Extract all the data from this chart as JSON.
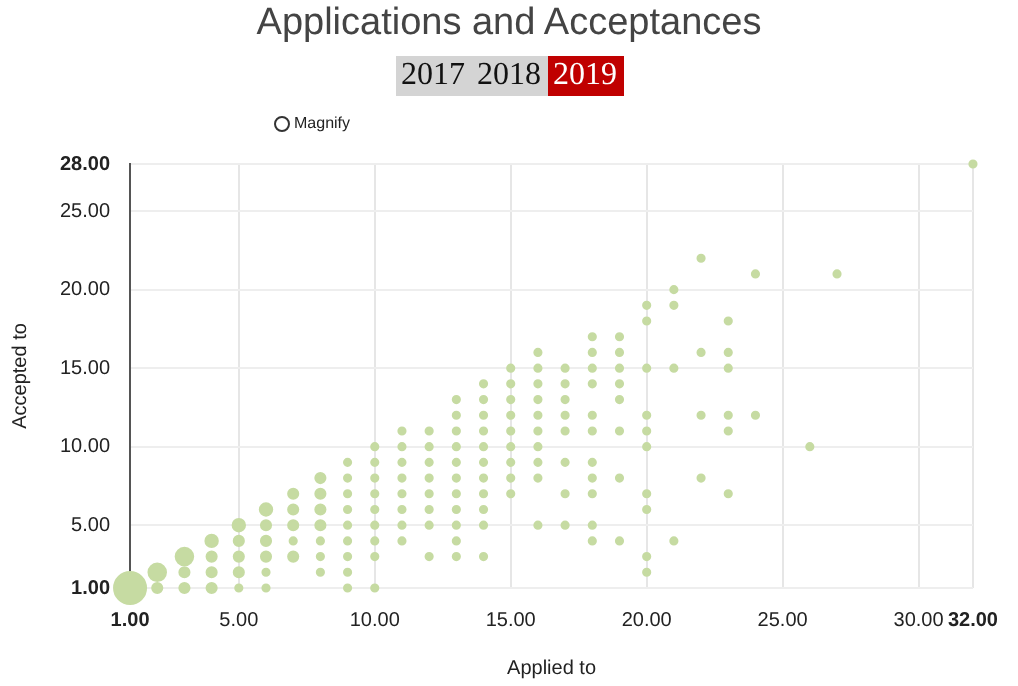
{
  "chart_data": {
    "type": "bubble",
    "title": "Applications and Acceptances",
    "xlabel": "Applied to",
    "ylabel": "Accepted to",
    "annotations": [
      "2017",
      "2018",
      "2019",
      "Magnify"
    ],
    "xlim": [
      1,
      32
    ],
    "xticks": [
      {
        "value": 1,
        "label": "1.00"
      },
      {
        "value": 5,
        "label": "5.00"
      },
      {
        "value": 10,
        "label": "10.00"
      },
      {
        "value": 15,
        "label": "15.00"
      },
      {
        "value": 20,
        "label": "20.00"
      },
      {
        "value": 25,
        "label": "25.00"
      },
      {
        "value": 30,
        "label": "30.00"
      },
      {
        "value": 32,
        "label": "32.00"
      }
    ],
    "ylim": [
      1,
      28
    ],
    "yticks": [
      {
        "value": 1,
        "label": "1.00"
      },
      {
        "value": 5,
        "label": "5.00"
      },
      {
        "value": 10,
        "label": "10.00"
      },
      {
        "value": 15,
        "label": "15.00"
      },
      {
        "value": 20,
        "label": "20.00"
      },
      {
        "value": 25,
        "label": "25.00"
      },
      {
        "value": 28,
        "label": "28.00"
      }
    ],
    "grid": true,
    "legend": false,
    "series": [
      {
        "color": "#c6dba2",
        "x": [
          1,
          2,
          2,
          3,
          3,
          3,
          4,
          4,
          4,
          4,
          5,
          5,
          5,
          5,
          5,
          6,
          6,
          6,
          6,
          6,
          6,
          7,
          7,
          7,
          7,
          7,
          8,
          8,
          8,
          8,
          8,
          8,
          8,
          9,
          9,
          9,
          9,
          9,
          9,
          9,
          9,
          9,
          10,
          10,
          10,
          10,
          10,
          10,
          10,
          10,
          10,
          11,
          11,
          11,
          11,
          11,
          11,
          11,
          11,
          12,
          12,
          12,
          12,
          12,
          12,
          12,
          12,
          13,
          13,
          13,
          13,
          13,
          13,
          13,
          13,
          13,
          13,
          13,
          14,
          14,
          14,
          14,
          14,
          14,
          14,
          14,
          14,
          14,
          14,
          15,
          15,
          15,
          15,
          15,
          15,
          15,
          15,
          15,
          16,
          16,
          16,
          16,
          16,
          16,
          16,
          16,
          16,
          16,
          17,
          17,
          17,
          17,
          17,
          17,
          17,
          17,
          18,
          18,
          18,
          18,
          18,
          18,
          18,
          18,
          18,
          18,
          18,
          19,
          19,
          19,
          19,
          19,
          19,
          19,
          19,
          20,
          20,
          20,
          20,
          20,
          20,
          20,
          20,
          20,
          20,
          21,
          21,
          21,
          21,
          22,
          22,
          22,
          22,
          23,
          23,
          23,
          23,
          23,
          23,
          24,
          24,
          26,
          27,
          32
        ],
        "values": [
          1,
          1,
          2,
          1,
          2,
          3,
          1,
          2,
          3,
          4,
          1,
          2,
          3,
          4,
          5,
          1,
          2,
          3,
          4,
          5,
          6,
          3,
          4,
          5,
          6,
          7,
          2,
          3,
          4,
          5,
          6,
          7,
          8,
          1,
          2,
          3,
          4,
          5,
          6,
          7,
          8,
          9,
          1,
          3,
          4,
          5,
          6,
          7,
          8,
          9,
          10,
          4,
          5,
          6,
          7,
          8,
          9,
          10,
          11,
          3,
          5,
          6,
          7,
          8,
          9,
          10,
          11,
          3,
          4,
          5,
          6,
          7,
          8,
          9,
          10,
          11,
          12,
          13,
          3,
          5,
          6,
          7,
          8,
          9,
          10,
          11,
          12,
          13,
          14,
          7,
          8,
          9,
          10,
          11,
          12,
          13,
          14,
          15,
          5,
          8,
          9,
          10,
          11,
          12,
          13,
          14,
          15,
          16,
          5,
          7,
          9,
          11,
          12,
          13,
          14,
          15,
          4,
          5,
          7,
          8,
          9,
          11,
          12,
          14,
          15,
          16,
          17,
          4,
          8,
          11,
          13,
          14,
          15,
          16,
          17,
          2,
          3,
          6,
          7,
          10,
          11,
          12,
          15,
          18,
          19,
          4,
          15,
          19,
          20,
          8,
          12,
          16,
          22,
          7,
          11,
          12,
          15,
          16,
          18,
          12,
          21,
          10,
          21,
          28
        ],
        "sizes": [
          1,
          0.1,
          0.3,
          0.1,
          0.1,
          0.3,
          0.1,
          0.1,
          0.1,
          0.15,
          0.05,
          0.1,
          0.1,
          0.1,
          0.15,
          0.05,
          0.05,
          0.1,
          0.1,
          0.1,
          0.15,
          0.1,
          0.05,
          0.1,
          0.1,
          0.1,
          0.05,
          0.05,
          0.05,
          0.1,
          0.1,
          0.1,
          0.1,
          0.05,
          0.05,
          0.05,
          0.05,
          0.05,
          0.05,
          0.05,
          0.05,
          0.05,
          0.05,
          0.05,
          0.05,
          0.05,
          0.05,
          0.05,
          0.05,
          0.05,
          0.05,
          0.05,
          0.05,
          0.05,
          0.05,
          0.05,
          0.05,
          0.05,
          0.05,
          0.05,
          0.05,
          0.05,
          0.05,
          0.05,
          0.05,
          0.05,
          0.05,
          0.05,
          0.05,
          0.05,
          0.05,
          0.05,
          0.05,
          0.05,
          0.05,
          0.05,
          0.05,
          0.05,
          0.05,
          0.05,
          0.05,
          0.05,
          0.05,
          0.05,
          0.05,
          0.05,
          0.05,
          0.05,
          0.05,
          0.05,
          0.05,
          0.05,
          0.05,
          0.05,
          0.05,
          0.05,
          0.05,
          0.05,
          0.05,
          0.05,
          0.05,
          0.05,
          0.05,
          0.05,
          0.05,
          0.05,
          0.05,
          0.05,
          0.05,
          0.05,
          0.05,
          0.05,
          0.05,
          0.05,
          0.05,
          0.05,
          0.05,
          0.05,
          0.05,
          0.05,
          0.05,
          0.05,
          0.05,
          0.05,
          0.05,
          0.05,
          0.05,
          0.05,
          0.05,
          0.05,
          0.05,
          0.05,
          0.05,
          0.05,
          0.05,
          0.05,
          0.05,
          0.05,
          0.05,
          0.05,
          0.05,
          0.05,
          0.05,
          0.05,
          0.05,
          0.05,
          0.05,
          0.05,
          0.05,
          0.05,
          0.05,
          0.05,
          0.05,
          0.05,
          0.05,
          0.05,
          0.05,
          0.05,
          0.05,
          0.05,
          0.05,
          0.05,
          0.05,
          0.05
        ]
      }
    ]
  }
}
